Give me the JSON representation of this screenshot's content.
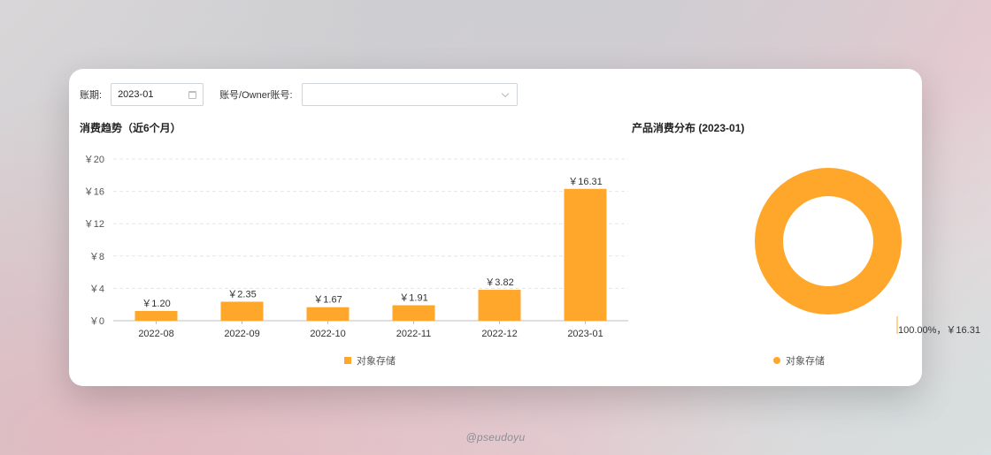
{
  "filters": {
    "period_label": "账期:",
    "period_value": "2023-01",
    "account_label": "账号/Owner账号:",
    "account_value": ""
  },
  "trend_title": "消费趋势（近6个月）",
  "pie_title": "产品消费分布 (2023-01)",
  "watermark": "@pseudoyu",
  "colors": {
    "series": "#ffa72b",
    "grid": "#e6e6e6",
    "axis": "#bfbfbf"
  },
  "chart_data": [
    {
      "type": "bar",
      "title": "消费趋势（近6个月）",
      "categories": [
        "2022-08",
        "2022-09",
        "2022-10",
        "2022-11",
        "2022-12",
        "2023-01"
      ],
      "series": [
        {
          "name": "对象存储",
          "values": [
            1.2,
            2.35,
            1.67,
            1.91,
            3.82,
            16.31
          ]
        }
      ],
      "data_labels": [
        "￥1.20",
        "￥2.35",
        "￥1.67",
        "￥1.91",
        "￥3.82",
        "￥16.31"
      ],
      "y_ticks": [
        0,
        4,
        8,
        12,
        16,
        20
      ],
      "y_tick_labels": [
        "￥0",
        "￥4",
        "￥8",
        "￥12",
        "￥16",
        "￥20"
      ],
      "ylim": [
        0,
        20
      ],
      "grid": true,
      "legend": "bottom-center"
    },
    {
      "type": "pie",
      "title": "产品消费分布 (2023-01)",
      "donut": true,
      "slices": [
        {
          "name": "对象存储",
          "value": 16.31,
          "percent": 100.0,
          "label": "100.00%，￥16.31"
        }
      ],
      "legend": "bottom-center"
    }
  ]
}
